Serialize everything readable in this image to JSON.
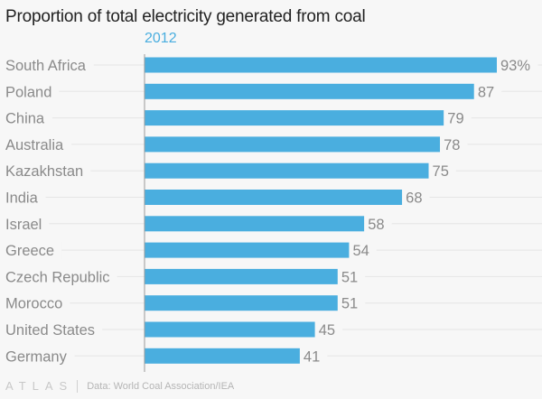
{
  "header": {
    "title": "Proportion of total electricity generated from coal"
  },
  "chart_data": {
    "type": "bar",
    "orientation": "horizontal",
    "title": "Proportion of total electricity generated from coal",
    "series": [
      {
        "name": "2012",
        "values": [
          93,
          87,
          79,
          78,
          75,
          68,
          58,
          54,
          51,
          51,
          45,
          41
        ]
      }
    ],
    "categories": [
      "South Africa",
      "Poland",
      "China",
      "Australia",
      "Kazakhstan",
      "India",
      "Israel",
      "Greece",
      "Czech Republic",
      "Morocco",
      "United States",
      "Germany"
    ],
    "value_labels": [
      "93%",
      "87",
      "79",
      "78",
      "75",
      "68",
      "58",
      "54",
      "51",
      "51",
      "45",
      "41"
    ],
    "unit": "%",
    "xlabel": "",
    "ylabel": "",
    "xlim": [
      0,
      93
    ],
    "grid": true,
    "bar_color": "#4aaedf"
  },
  "footer": {
    "logo": "ATLAS",
    "source": "Data: World Coal Association/IEA"
  }
}
